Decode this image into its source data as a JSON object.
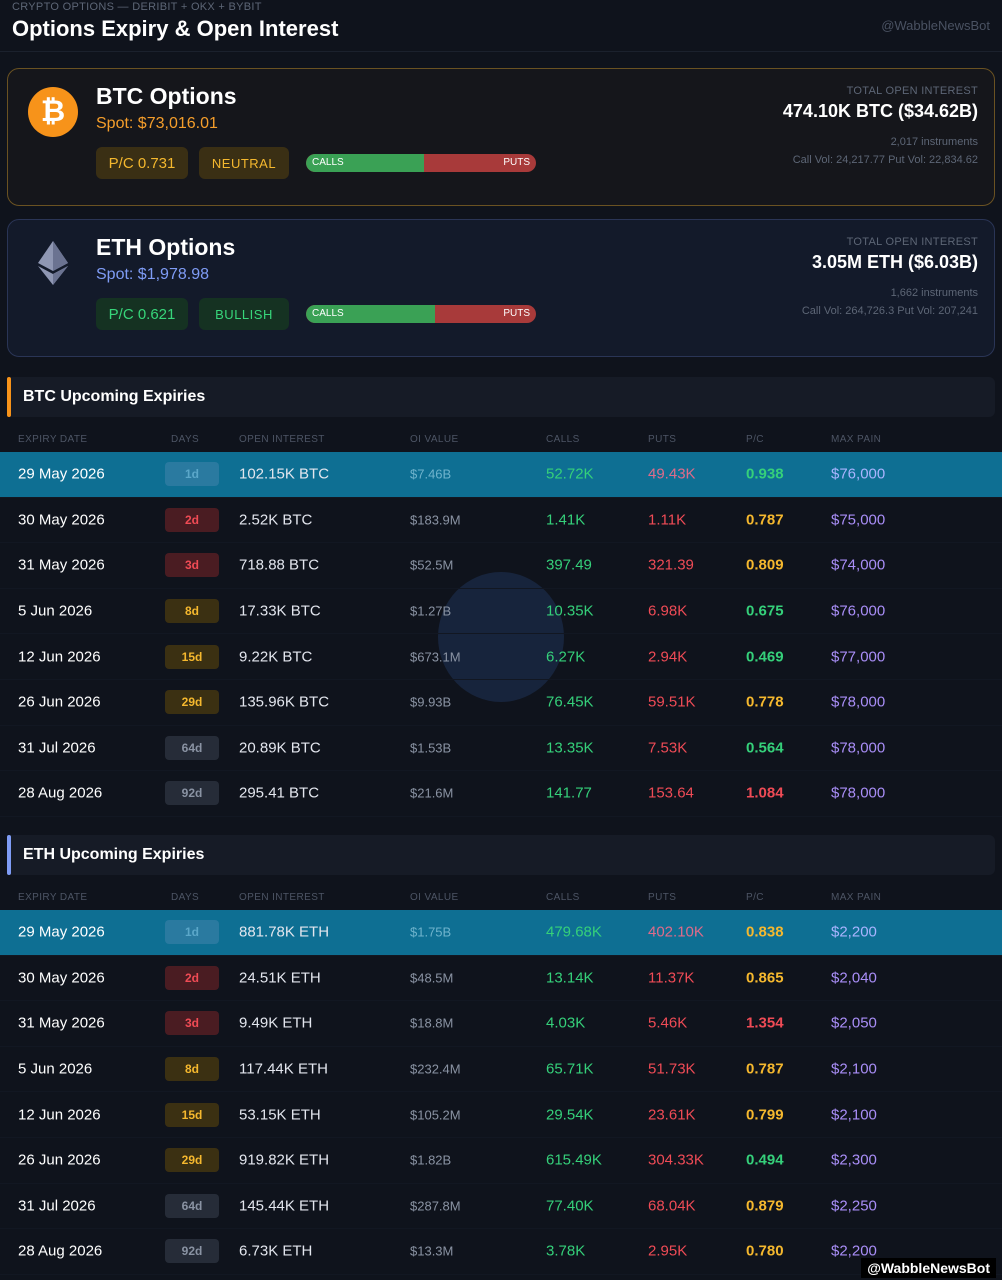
{
  "header": {
    "kicker": "CRYPTO OPTIONS — DERIBIT + OKX + BYBIT",
    "title": "Options Expiry & Open Interest",
    "handle": "@WabbleNewsBot"
  },
  "btc_card": {
    "icon": "bitcoin-icon",
    "icon_glyph": "₿",
    "name": "BTC Options",
    "spot": "Spot: $73,016.01",
    "pc": "P/C 0.731",
    "sentiment": "NEUTRAL",
    "calls_label": "CALLS",
    "puts_label": "PUTS",
    "calls_fraction": 0.515,
    "oi_label": "TOTAL OPEN INTEREST",
    "oi_value": "474.10K BTC ($34.62B)",
    "instruments": "2,017 instruments",
    "volumes": "Call Vol: 24,217.77 Put Vol: 22,834.62"
  },
  "eth_card": {
    "icon": "ethereum-icon",
    "name": "ETH Options",
    "spot": "Spot: $1,978.98",
    "pc": "P/C 0.621",
    "sentiment": "BULLISH",
    "calls_label": "CALLS",
    "puts_label": "PUTS",
    "calls_fraction": 0.561,
    "oi_label": "TOTAL OPEN INTEREST",
    "oi_value": "3.05M ETH ($6.03B)",
    "instruments": "1,662 instruments",
    "volumes": "Call Vol: 264,726.3 Put Vol: 207,241"
  },
  "columns": {
    "expiry": "EXPIRY DATE",
    "days": "DAYS",
    "oi": "OPEN INTEREST",
    "oi_value": "OI VALUE",
    "calls": "CALLS",
    "puts": "PUTS",
    "pc": "P/C",
    "max_pain": "MAX PAIN"
  },
  "btc_section": {
    "title": "BTC Upcoming Expiries",
    "rows": [
      {
        "date": "29 May 2026",
        "days": "1d",
        "oi": "102.15K BTC",
        "value": "$7.46B",
        "calls": "52.72K",
        "puts": "49.43K",
        "pc": "0.938",
        "pain": "$76,000",
        "pc_class": "pc-green",
        "day_class": "d-1",
        "highlight": true
      },
      {
        "date": "30 May 2026",
        "days": "2d",
        "oi": "2.52K BTC",
        "value": "$183.9M",
        "calls": "1.41K",
        "puts": "1.11K",
        "pc": "0.787",
        "pain": "$75,000",
        "pc_class": "pc-amber",
        "day_class": "d-2",
        "highlight": false
      },
      {
        "date": "31 May 2026",
        "days": "3d",
        "oi": "718.88 BTC",
        "value": "$52.5M",
        "calls": "397.49",
        "puts": "321.39",
        "pc": "0.809",
        "pain": "$74,000",
        "pc_class": "pc-amber",
        "day_class": "d-3",
        "highlight": false
      },
      {
        "date": "5 Jun 2026",
        "days": "8d",
        "oi": "17.33K BTC",
        "value": "$1.27B",
        "calls": "10.35K",
        "puts": "6.98K",
        "pc": "0.675",
        "pain": "$76,000",
        "pc_class": "pc-green",
        "day_class": "d-8",
        "highlight": false
      },
      {
        "date": "12 Jun 2026",
        "days": "15d",
        "oi": "9.22K BTC",
        "value": "$673.1M",
        "calls": "6.27K",
        "puts": "2.94K",
        "pc": "0.469",
        "pain": "$77,000",
        "pc_class": "pc-green",
        "day_class": "d-15",
        "highlight": false
      },
      {
        "date": "26 Jun 2026",
        "days": "29d",
        "oi": "135.96K BTC",
        "value": "$9.93B",
        "calls": "76.45K",
        "puts": "59.51K",
        "pc": "0.778",
        "pain": "$78,000",
        "pc_class": "pc-amber",
        "day_class": "d-29",
        "highlight": false
      },
      {
        "date": "31 Jul 2026",
        "days": "64d",
        "oi": "20.89K BTC",
        "value": "$1.53B",
        "calls": "13.35K",
        "puts": "7.53K",
        "pc": "0.564",
        "pain": "$78,000",
        "pc_class": "pc-green",
        "day_class": "d-64",
        "highlight": false
      },
      {
        "date": "28 Aug 2026",
        "days": "92d",
        "oi": "295.41 BTC",
        "value": "$21.6M",
        "calls": "141.77",
        "puts": "153.64",
        "pc": "1.084",
        "pain": "$78,000",
        "pc_class": "pc-red",
        "day_class": "d-92",
        "highlight": false
      }
    ]
  },
  "eth_section": {
    "title": "ETH Upcoming Expiries",
    "rows": [
      {
        "date": "29 May 2026",
        "days": "1d",
        "oi": "881.78K ETH",
        "value": "$1.75B",
        "calls": "479.68K",
        "puts": "402.10K",
        "pc": "0.838",
        "pain": "$2,200",
        "pc_class": "pc-amber",
        "day_class": "d-1",
        "highlight": true
      },
      {
        "date": "30 May 2026",
        "days": "2d",
        "oi": "24.51K ETH",
        "value": "$48.5M",
        "calls": "13.14K",
        "puts": "11.37K",
        "pc": "0.865",
        "pain": "$2,040",
        "pc_class": "pc-amber",
        "day_class": "d-2",
        "highlight": false
      },
      {
        "date": "31 May 2026",
        "days": "3d",
        "oi": "9.49K ETH",
        "value": "$18.8M",
        "calls": "4.03K",
        "puts": "5.46K",
        "pc": "1.354",
        "pain": "$2,050",
        "pc_class": "pc-red",
        "day_class": "d-3",
        "highlight": false
      },
      {
        "date": "5 Jun 2026",
        "days": "8d",
        "oi": "117.44K ETH",
        "value": "$232.4M",
        "calls": "65.71K",
        "puts": "51.73K",
        "pc": "0.787",
        "pain": "$2,100",
        "pc_class": "pc-amber",
        "day_class": "d-8",
        "highlight": false
      },
      {
        "date": "12 Jun 2026",
        "days": "15d",
        "oi": "53.15K ETH",
        "value": "$105.2M",
        "calls": "29.54K",
        "puts": "23.61K",
        "pc": "0.799",
        "pain": "$2,100",
        "pc_class": "pc-amber",
        "day_class": "d-15",
        "highlight": false
      },
      {
        "date": "26 Jun 2026",
        "days": "29d",
        "oi": "919.82K ETH",
        "value": "$1.82B",
        "calls": "615.49K",
        "puts": "304.33K",
        "pc": "0.494",
        "pain": "$2,300",
        "pc_class": "pc-green",
        "day_class": "d-29",
        "highlight": false
      },
      {
        "date": "31 Jul 2026",
        "days": "64d",
        "oi": "145.44K ETH",
        "value": "$287.8M",
        "calls": "77.40K",
        "puts": "68.04K",
        "pc": "0.879",
        "pain": "$2,250",
        "pc_class": "pc-amber",
        "day_class": "d-64",
        "highlight": false
      },
      {
        "date": "28 Aug 2026",
        "days": "92d",
        "oi": "6.73K ETH",
        "value": "$13.3M",
        "calls": "3.78K",
        "puts": "2.95K",
        "pc": "0.780",
        "pain": "$2,200",
        "pc_class": "pc-amber",
        "day_class": "d-92",
        "highlight": false
      }
    ]
  },
  "footer": {
    "handle": "@WabbleNewsBot"
  }
}
